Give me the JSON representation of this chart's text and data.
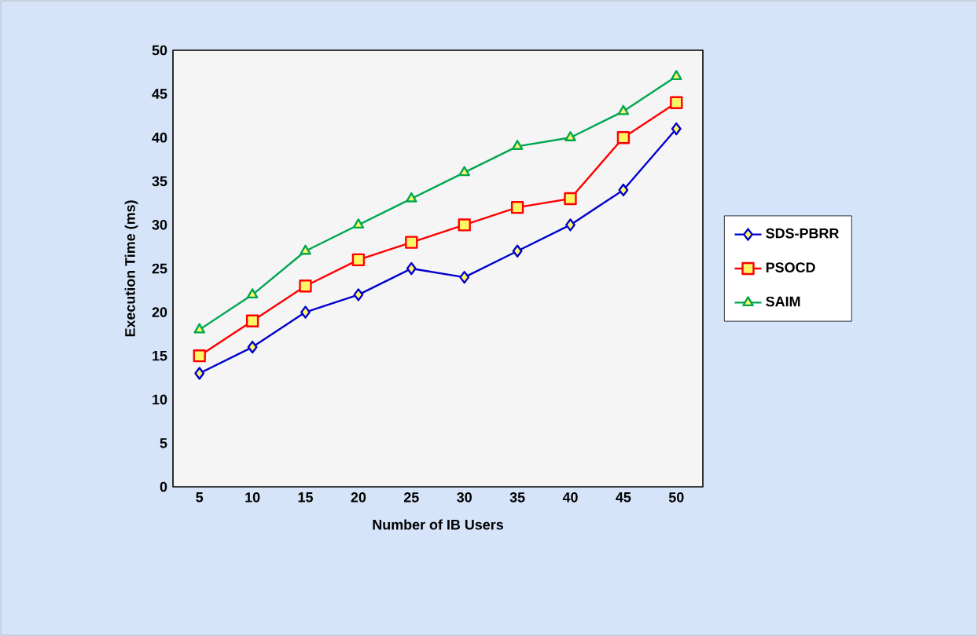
{
  "chart_data": {
    "type": "line",
    "xlabel": "Number of IB Users",
    "ylabel": "Execution Time  (ms)",
    "categories": [
      "5",
      "10",
      "15",
      "20",
      "25",
      "30",
      "35",
      "40",
      "45",
      "50"
    ],
    "series": [
      {
        "name": "SDS-PBRR",
        "color": "#0000cc",
        "marker": "diamond",
        "values": [
          13,
          16,
          20,
          22,
          25,
          24,
          27,
          30,
          34,
          41
        ]
      },
      {
        "name": "PSOCD",
        "color": "#ff0000",
        "marker": "square",
        "values": [
          15,
          19,
          23,
          26,
          28,
          30,
          32,
          33,
          40,
          44
        ]
      },
      {
        "name": "SAIM",
        "color": "#00a651",
        "marker": "triangle",
        "values": [
          18,
          22,
          27,
          30,
          33,
          36,
          39,
          40,
          43,
          47
        ]
      }
    ],
    "ylim": [
      0,
      50
    ],
    "yticks": [
      0,
      5,
      10,
      15,
      20,
      25,
      30,
      35,
      40,
      45,
      50
    ],
    "grid": false,
    "legend": "right",
    "line_style": "solid"
  }
}
